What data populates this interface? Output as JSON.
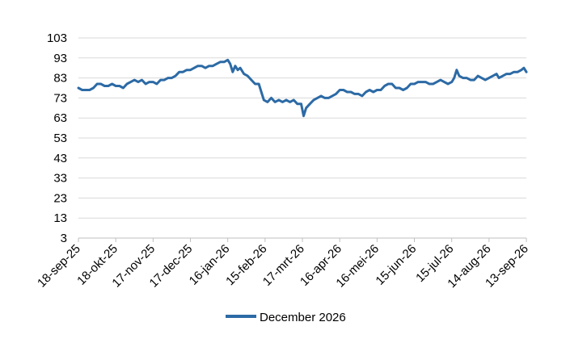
{
  "chart_data": {
    "type": "line",
    "title": "",
    "xlabel": "",
    "ylabel": "",
    "ylim": [
      3,
      103
    ],
    "yticks": [
      3,
      13,
      23,
      33,
      43,
      53,
      63,
      73,
      83,
      93,
      103
    ],
    "grid": "horizontal",
    "legend_position": "bottom",
    "x_tick_labels": [
      "18-sep-25",
      "18-okt-25",
      "17-nov-25",
      "17-dec-25",
      "16-jan-26",
      "15-feb-26",
      "17-mrt-26",
      "16-apr-26",
      "16-mei-26",
      "15-jun-26",
      "15-jul-26",
      "14-aug-26",
      "13-sep-26"
    ],
    "series": [
      {
        "name": "December 2026",
        "color": "#2c6aa5",
        "points": [
          [
            "18-sep-25",
            78
          ],
          [
            "21-sep-25",
            77
          ],
          [
            "24-sep-25",
            77
          ],
          [
            "27-sep-25",
            77
          ],
          [
            "30-sep-25",
            78
          ],
          [
            "03-okt-25",
            80
          ],
          [
            "06-okt-25",
            80
          ],
          [
            "09-okt-25",
            79
          ],
          [
            "12-okt-25",
            79
          ],
          [
            "15-okt-25",
            80
          ],
          [
            "18-okt-25",
            79
          ],
          [
            "21-okt-25",
            79
          ],
          [
            "24-okt-25",
            78
          ],
          [
            "27-okt-25",
            80
          ],
          [
            "30-okt-25",
            81
          ],
          [
            "02-nov-25",
            82
          ],
          [
            "05-nov-25",
            81
          ],
          [
            "08-nov-25",
            82
          ],
          [
            "11-nov-25",
            80
          ],
          [
            "14-nov-25",
            81
          ],
          [
            "17-nov-25",
            81
          ],
          [
            "20-nov-25",
            80
          ],
          [
            "23-nov-25",
            82
          ],
          [
            "26-nov-25",
            82
          ],
          [
            "29-nov-25",
            83
          ],
          [
            "02-dec-25",
            83
          ],
          [
            "05-dec-25",
            84
          ],
          [
            "08-dec-25",
            86
          ],
          [
            "11-dec-25",
            86
          ],
          [
            "14-dec-25",
            87
          ],
          [
            "17-dec-25",
            87
          ],
          [
            "20-dec-25",
            88
          ],
          [
            "23-dec-25",
            89
          ],
          [
            "26-dec-25",
            89
          ],
          [
            "29-dec-25",
            88
          ],
          [
            "01-jan-26",
            89
          ],
          [
            "04-jan-26",
            89
          ],
          [
            "07-jan-26",
            90
          ],
          [
            "10-jan-26",
            91
          ],
          [
            "13-jan-26",
            91
          ],
          [
            "16-jan-26",
            92
          ],
          [
            "18-jan-26",
            90
          ],
          [
            "20-jan-26",
            86
          ],
          [
            "22-jan-26",
            89
          ],
          [
            "24-jan-26",
            87
          ],
          [
            "26-jan-26",
            88
          ],
          [
            "29-jan-26",
            85
          ],
          [
            "01-feb-26",
            84
          ],
          [
            "04-feb-26",
            82
          ],
          [
            "07-feb-26",
            80
          ],
          [
            "10-feb-26",
            80
          ],
          [
            "12-feb-26",
            76
          ],
          [
            "14-feb-26",
            72
          ],
          [
            "17-feb-26",
            71
          ],
          [
            "20-feb-26",
            73
          ],
          [
            "23-feb-26",
            71
          ],
          [
            "26-feb-26",
            72
          ],
          [
            "01-mrt-26",
            71
          ],
          [
            "04-mrt-26",
            72
          ],
          [
            "07-mrt-26",
            71
          ],
          [
            "10-mrt-26",
            72
          ],
          [
            "13-mrt-26",
            70
          ],
          [
            "16-mrt-26",
            70
          ],
          [
            "18-mrt-26",
            64
          ],
          [
            "20-mrt-26",
            68
          ],
          [
            "23-mrt-26",
            70
          ],
          [
            "26-mrt-26",
            72
          ],
          [
            "29-mrt-26",
            73
          ],
          [
            "01-apr-26",
            74
          ],
          [
            "04-apr-26",
            73
          ],
          [
            "07-apr-26",
            73
          ],
          [
            "10-apr-26",
            74
          ],
          [
            "13-apr-26",
            75
          ],
          [
            "16-apr-26",
            77
          ],
          [
            "19-apr-26",
            77
          ],
          [
            "22-apr-26",
            76
          ],
          [
            "25-apr-26",
            76
          ],
          [
            "28-apr-26",
            75
          ],
          [
            "01-mei-26",
            75
          ],
          [
            "04-mei-26",
            74
          ],
          [
            "07-mei-26",
            76
          ],
          [
            "10-mei-26",
            77
          ],
          [
            "13-mei-26",
            76
          ],
          [
            "16-mei-26",
            77
          ],
          [
            "19-mei-26",
            77
          ],
          [
            "22-mei-26",
            79
          ],
          [
            "25-mei-26",
            80
          ],
          [
            "28-mei-26",
            80
          ],
          [
            "31-mei-26",
            78
          ],
          [
            "03-jun-26",
            78
          ],
          [
            "06-jun-26",
            77
          ],
          [
            "09-jun-26",
            78
          ],
          [
            "12-jun-26",
            80
          ],
          [
            "15-jun-26",
            80
          ],
          [
            "18-jun-26",
            81
          ],
          [
            "21-jun-26",
            81
          ],
          [
            "24-jun-26",
            81
          ],
          [
            "27-jun-26",
            80
          ],
          [
            "30-jun-26",
            80
          ],
          [
            "03-jul-26",
            81
          ],
          [
            "06-jul-26",
            82
          ],
          [
            "09-jul-26",
            81
          ],
          [
            "12-jul-26",
            80
          ],
          [
            "15-jul-26",
            81
          ],
          [
            "17-jul-26",
            83
          ],
          [
            "19-jul-26",
            87
          ],
          [
            "21-jul-26",
            84
          ],
          [
            "24-jul-26",
            83
          ],
          [
            "27-jul-26",
            83
          ],
          [
            "30-jul-26",
            82
          ],
          [
            "02-aug-26",
            82
          ],
          [
            "05-aug-26",
            84
          ],
          [
            "08-aug-26",
            83
          ],
          [
            "11-aug-26",
            82
          ],
          [
            "14-aug-26",
            83
          ],
          [
            "17-aug-26",
            84
          ],
          [
            "20-aug-26",
            85
          ],
          [
            "22-aug-26",
            83
          ],
          [
            "25-aug-26",
            84
          ],
          [
            "28-aug-26",
            85
          ],
          [
            "31-aug-26",
            85
          ],
          [
            "03-sep-26",
            86
          ],
          [
            "06-sep-26",
            86
          ],
          [
            "09-sep-26",
            87
          ],
          [
            "11-sep-26",
            88
          ],
          [
            "13-sep-26",
            86
          ]
        ]
      }
    ]
  }
}
